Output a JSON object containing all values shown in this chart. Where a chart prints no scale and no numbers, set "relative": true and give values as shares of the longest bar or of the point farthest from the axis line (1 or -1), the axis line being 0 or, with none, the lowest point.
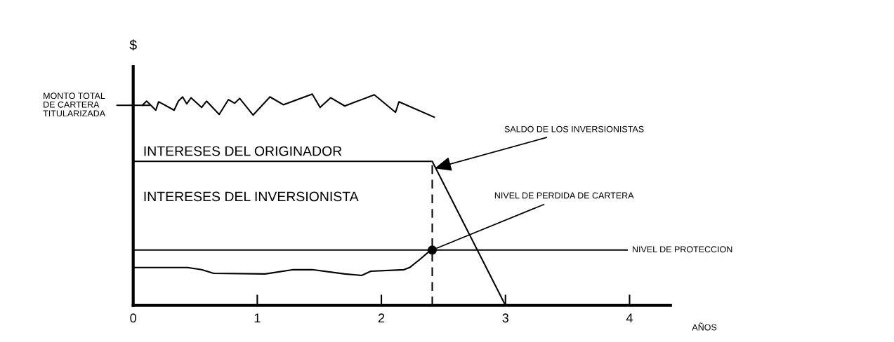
{
  "chart_data": {
    "type": "line",
    "relative": true,
    "ylabel": "$",
    "xlabel": "AÑOS",
    "xlim": [
      0,
      4.33
    ],
    "xticks": [
      0,
      1,
      2,
      3,
      4
    ],
    "grid": false,
    "marker": "none",
    "line_style": "solid",
    "series": [
      {
        "color": "#000000",
        "x": [
          0.074,
          0.108,
          0.182,
          0.205,
          0.33,
          0.364,
          0.398,
          0.432,
          0.466,
          0.551,
          0.591,
          0.693,
          0.767,
          0.818,
          0.858,
          0.966,
          1.102,
          1.21,
          1.443,
          1.506,
          1.591,
          1.705,
          1.943,
          2.114,
          2.142,
          2.426
        ],
        "values": [
          0.947,
          0.967,
          0.924,
          0.964,
          0.924,
          0.967,
          0.987,
          0.954,
          0.983,
          0.937,
          0.967,
          0.904,
          0.974,
          0.957,
          0.98,
          0.901,
          0.987,
          0.95,
          1,
          0.937,
          0.983,
          0.944,
          0.997,
          0.914,
          0.964,
          0.891
        ]
      },
      {
        "color": "#000000",
        "x": [
          0,
          2.41,
          3.0
        ],
        "values": [
          0.682,
          0.682,
          0
        ]
      },
      {
        "color": "#000000",
        "x": [
          0,
          0.438,
          0.551,
          0.648,
          1.063,
          1.29,
          1.443,
          1.705,
          1.841,
          1.915,
          2.182,
          2.227,
          2.313,
          2.398
        ],
        "values": [
          0.179,
          0.179,
          0.169,
          0.152,
          0.149,
          0.169,
          0.169,
          0.149,
          0.142,
          0.162,
          0.169,
          0.179,
          0.219,
          0.262
        ]
      },
      {
        "color": "#000000",
        "x": [
          0,
          3.98
        ],
        "values": [
          0.262,
          0.262
        ]
      },
      {
        "color": "#000000",
        "x": [
          2.41,
          2.41
        ],
        "values": [
          0,
          0.682
        ],
        "line_style": "dashed"
      },
      {
        "color": "#000000",
        "type": "scatter",
        "marker": "circle",
        "x": [
          2.41
        ],
        "values": [
          0.262
        ]
      }
    ],
    "annotations": [
      "MONTO TOTAL\nDE CARTERA\nTITULARIZADA",
      "INTERESES DEL ORIGINADOR",
      "INTERESES DEL INVERSIONISTA",
      {
        "text": "SALDO DE LOS INVERSIONISTAS",
        "x": 2.43,
        "y": 0.649
      },
      {
        "text": "NIVEL DE PERDIDA DE CARTERA",
        "x": 2.41,
        "y": 0.262
      },
      {
        "text": "NIVEL DE PROTECCION",
        "x": 3.98,
        "y": 0.262
      }
    ]
  }
}
